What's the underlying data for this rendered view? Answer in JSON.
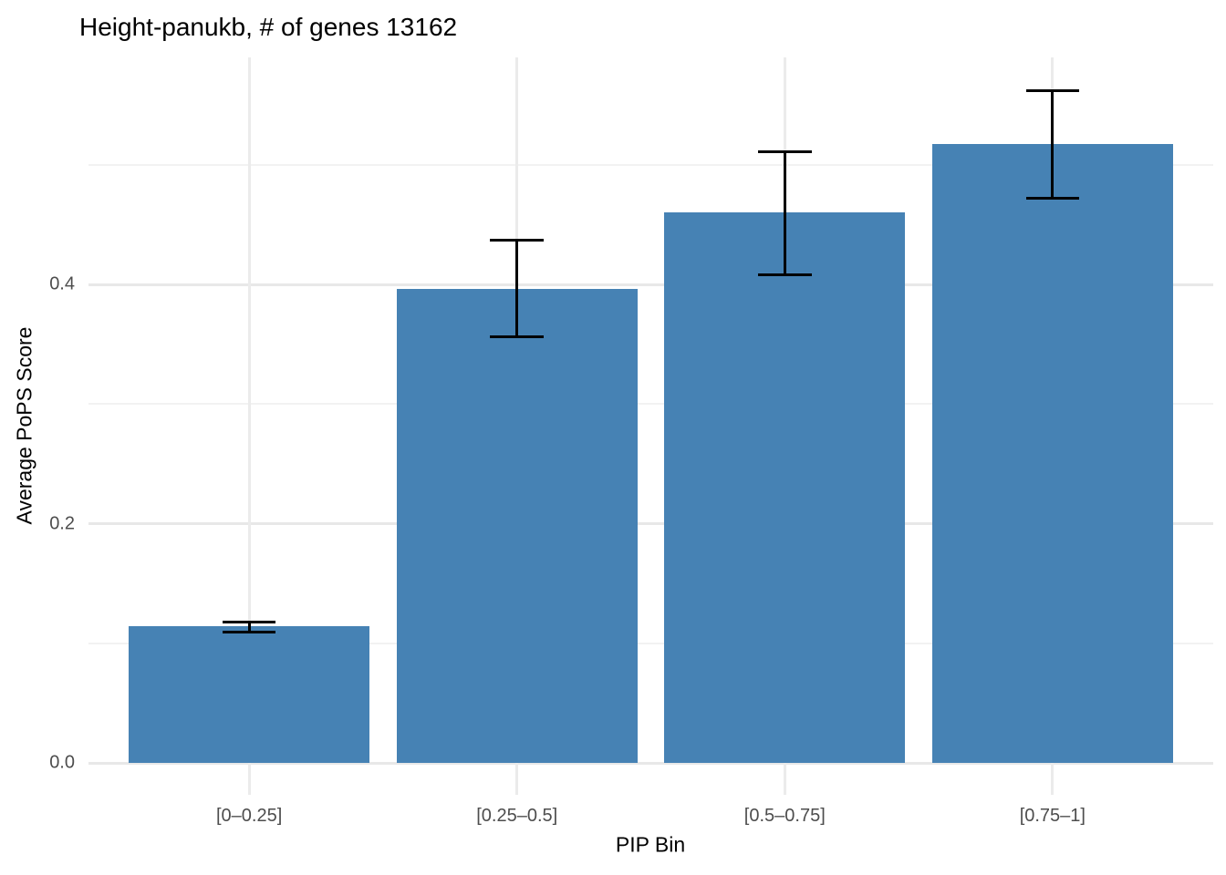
{
  "chart_data": {
    "type": "bar",
    "title": "Height-panukb, # of genes 13162",
    "xlabel": "PIP Bin",
    "ylabel": "Average PoPS Score",
    "categories": [
      "[0–0.25]",
      "[0.25–0.5]",
      "[0.5–0.75]",
      "[0.75–1]"
    ],
    "values": [
      0.114,
      0.396,
      0.46,
      0.517
    ],
    "error_low": [
      0.109,
      0.356,
      0.408,
      0.472
    ],
    "error_high": [
      0.118,
      0.437,
      0.511,
      0.562
    ],
    "y_ticks": [
      {
        "value": 0.0,
        "label": "0.0"
      },
      {
        "value": 0.2,
        "label": "0.2"
      },
      {
        "value": 0.4,
        "label": "0.4"
      }
    ],
    "y_minor_ticks": [
      0.1,
      0.3,
      0.5
    ],
    "ylim": [
      -0.028,
      0.59
    ],
    "grid": true,
    "legend": false,
    "bar_width_ratio": 0.9,
    "colors": {
      "bar": "#4682B4",
      "error_bar": "#000000",
      "grid_major": "#E8E8E8",
      "grid_minor": "#F2F2F2",
      "category_grid": "#EBEBEB",
      "tick_text": "#4D4D4D",
      "title_text": "#000000",
      "background": "#FFFFFF"
    }
  }
}
